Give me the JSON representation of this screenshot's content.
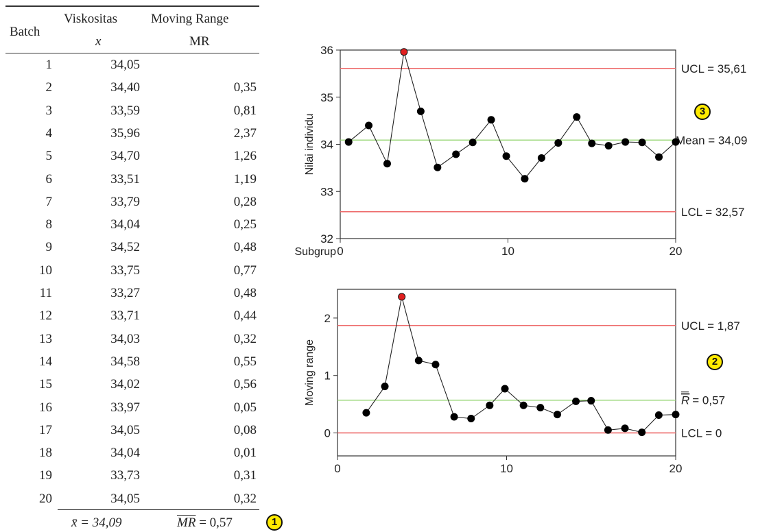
{
  "table": {
    "headers": {
      "batch": "Batch",
      "x_title": "Viskositas",
      "x_sub": "x",
      "mr_title": "Moving Range",
      "mr_sub": "MR"
    },
    "rows": [
      {
        "batch": "1",
        "x": "34,05",
        "mr": ""
      },
      {
        "batch": "2",
        "x": "34,40",
        "mr": "0,35"
      },
      {
        "batch": "3",
        "x": "33,59",
        "mr": "0,81"
      },
      {
        "batch": "4",
        "x": "35,96",
        "mr": "2,37"
      },
      {
        "batch": "5",
        "x": "34,70",
        "mr": "1,26"
      },
      {
        "batch": "6",
        "x": "33,51",
        "mr": "1,19"
      },
      {
        "batch": "7",
        "x": "33,79",
        "mr": "0,28"
      },
      {
        "batch": "8",
        "x": "34,04",
        "mr": "0,25"
      },
      {
        "batch": "9",
        "x": "34,52",
        "mr": "0,48"
      },
      {
        "batch": "10",
        "x": "33,75",
        "mr": "0,77"
      },
      {
        "batch": "11",
        "x": "33,27",
        "mr": "0,48"
      },
      {
        "batch": "12",
        "x": "33,71",
        "mr": "0,44"
      },
      {
        "batch": "13",
        "x": "34,03",
        "mr": "0,32"
      },
      {
        "batch": "14",
        "x": "34,58",
        "mr": "0,55"
      },
      {
        "batch": "15",
        "x": "34,02",
        "mr": "0,56"
      },
      {
        "batch": "16",
        "x": "33,97",
        "mr": "0,05"
      },
      {
        "batch": "17",
        "x": "34,05",
        "mr": "0,08"
      },
      {
        "batch": "18",
        "x": "34,04",
        "mr": "0,01"
      },
      {
        "batch": "19",
        "x": "33,73",
        "mr": "0,31"
      },
      {
        "batch": "20",
        "x": "34,05",
        "mr": "0,32"
      }
    ],
    "footer": {
      "xbar": "x̄ = 34,09",
      "mrbar_symbol": "MR",
      "mrbar_value": "= 0,57"
    }
  },
  "badges": [
    "1",
    "2",
    "3"
  ],
  "colors": {
    "limit_line": "#ee6d6d",
    "center_line": "#8fd36a",
    "out_point": "#e02020",
    "point": "#000000",
    "badge": "#ffeb00"
  },
  "chart_data": [
    {
      "type": "line",
      "title": "",
      "xlabel": "Subgrup",
      "ylabel": "Nilai individu",
      "xlim": [
        0,
        20
      ],
      "ylim": [
        32,
        36
      ],
      "x_ticks": [
        "0",
        "10",
        "20"
      ],
      "y_ticks": [
        "32",
        "33",
        "34",
        "35",
        "36"
      ],
      "x": [
        0.5,
        1.7,
        2.8,
        3.8,
        4.8,
        5.8,
        6.9,
        7.9,
        9.0,
        9.9,
        11.0,
        12.0,
        13.0,
        14.1,
        15.0,
        16.0,
        17.0,
        18.0,
        19.0,
        20.0
      ],
      "values": [
        34.05,
        34.4,
        33.59,
        35.96,
        34.7,
        33.51,
        33.79,
        34.04,
        34.52,
        33.75,
        33.27,
        33.71,
        34.03,
        34.58,
        34.02,
        33.97,
        34.05,
        34.04,
        33.73,
        34.05
      ],
      "out_of_control_index": [
        3
      ],
      "limits": {
        "ucl": 35.61,
        "center": 34.09,
        "lcl": 32.57
      },
      "limit_labels": {
        "ucl": "UCL =  35,61",
        "center": "Mean =  34,09",
        "lcl": "LCL = 32,57"
      }
    },
    {
      "type": "line",
      "title": "",
      "xlabel": "",
      "ylabel": "Moving range",
      "xlim": [
        0,
        20
      ],
      "ylim": [
        -0.4,
        2.5
      ],
      "x_ticks": [
        "0",
        "10",
        "20"
      ],
      "y_ticks": [
        "0",
        "1",
        "2"
      ],
      "x": [
        1.7,
        2.8,
        3.8,
        4.8,
        5.8,
        6.9,
        7.9,
        9.0,
        9.9,
        11.0,
        12.0,
        13.0,
        14.1,
        15.0,
        16.0,
        17.0,
        18.0,
        19.0,
        20.0
      ],
      "values": [
        0.35,
        0.81,
        2.37,
        1.26,
        1.19,
        0.28,
        0.25,
        0.48,
        0.77,
        0.48,
        0.44,
        0.32,
        0.55,
        0.56,
        0.05,
        0.08,
        0.01,
        0.31,
        0.32
      ],
      "out_of_control_index": [
        2
      ],
      "limits": {
        "ucl": 1.87,
        "center": 0.57,
        "lcl": 0
      },
      "limit_labels": {
        "ucl": "UCL = 1,87",
        "center_symbol": "R",
        "center": "= 0,57",
        "lcl": "LCL =  0"
      }
    }
  ]
}
